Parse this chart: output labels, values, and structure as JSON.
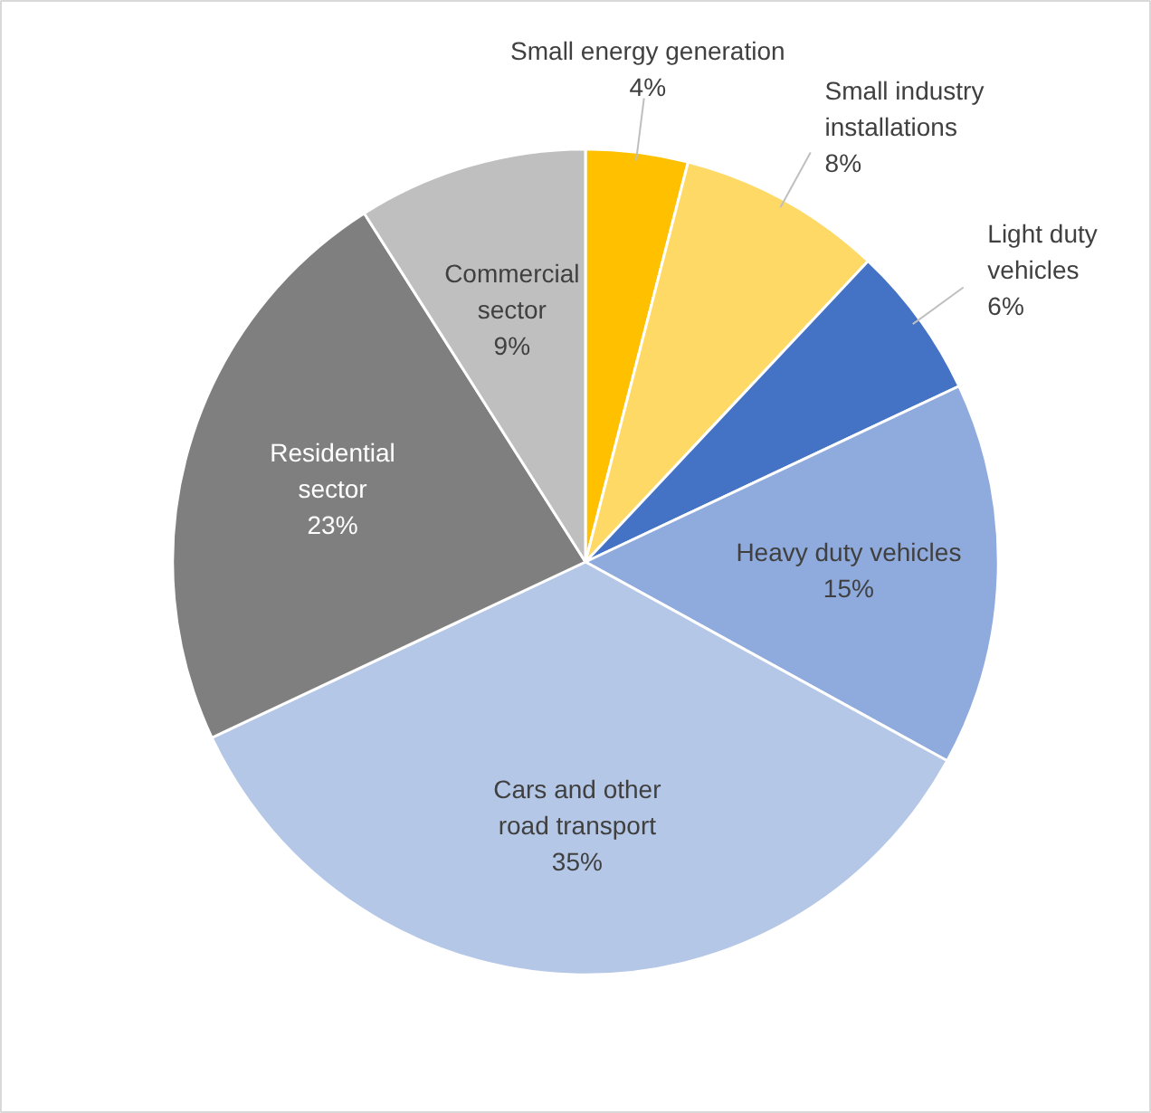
{
  "chart_data": {
    "type": "pie",
    "categories": [
      "Small energy generation",
      "Small industry\ninstallations",
      "Light duty\nvehicles",
      "Heavy duty vehicles",
      "Cars and other\nroad transport",
      "Residential\nsector",
      "Commercial\nsector"
    ],
    "values": [
      4,
      8,
      6,
      15,
      35,
      23,
      9
    ],
    "colors": [
      "#ffc000",
      "#ffd966",
      "#4472c4",
      "#8faadc",
      "#b4c7e7",
      "#7f7f7f",
      "#bfbfbf"
    ],
    "value_labels": [
      "4%",
      "8%",
      "6%",
      "15%",
      "35%",
      "23%",
      "9%"
    ]
  }
}
